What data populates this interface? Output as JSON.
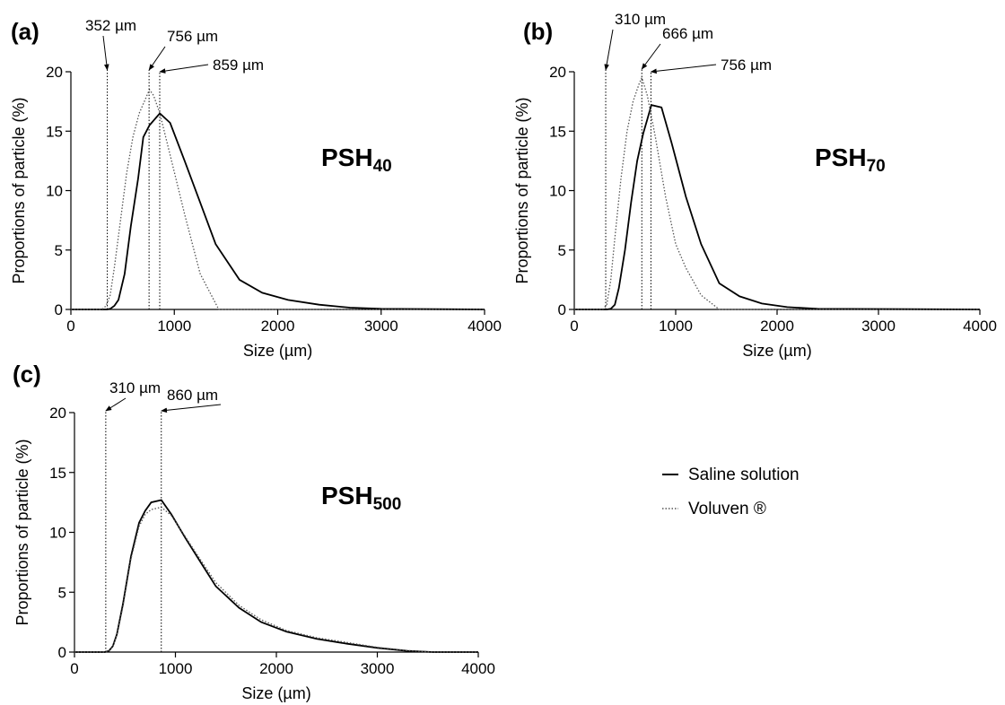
{
  "chart_data": [
    {
      "type": "line",
      "panel_label": "(a)",
      "sample_label": "PSH",
      "sample_subscript": "40",
      "xlabel": "Size (µm)",
      "ylabel": "Proportions of particle (%)",
      "xlim": [
        0,
        4000
      ],
      "ylim": [
        0,
        20
      ],
      "xticks": [
        "0",
        "1000",
        "2000",
        "3000",
        "4000"
      ],
      "yticks": [
        "0",
        "5",
        "10",
        "15",
        "20"
      ],
      "series": [
        {
          "style": "solid",
          "x": [
            0,
            350,
            380,
            420,
            460,
            520,
            580,
            650,
            700,
            760,
            860,
            960,
            1100,
            1250,
            1400,
            1630,
            1850,
            2100,
            2400,
            2700,
            3000,
            4000
          ],
          "y": [
            0,
            0,
            0.05,
            0.3,
            0.8,
            3,
            7,
            11,
            14.5,
            15.5,
            16.5,
            15.7,
            12.5,
            9,
            5.5,
            2.5,
            1.4,
            0.8,
            0.4,
            0.15,
            0.05,
            0
          ]
        },
        {
          "style": "dotted",
          "x": [
            0,
            300,
            340,
            380,
            420,
            480,
            540,
            600,
            660,
            700,
            760,
            800,
            860,
            960,
            1100,
            1250,
            1430,
            4000
          ],
          "y": [
            0,
            0,
            0.3,
            1.2,
            3.5,
            7.5,
            11.5,
            14.5,
            16.5,
            17.3,
            18.5,
            18,
            16.5,
            13,
            8,
            3,
            0,
            0
          ]
        }
      ],
      "annotations": [
        {
          "text": "352 µm",
          "x": 352
        },
        {
          "text": "756 µm",
          "x": 756
        },
        {
          "text": "859 µm",
          "x": 859
        }
      ]
    },
    {
      "type": "line",
      "panel_label": "(b)",
      "sample_label": "PSH",
      "sample_subscript": "70",
      "xlabel": "Size (µm)",
      "ylabel": "Proportions of particle (%)",
      "xlim": [
        0,
        4000
      ],
      "ylim": [
        0,
        20
      ],
      "xticks": [
        "0",
        "1000",
        "2000",
        "3000",
        "4000"
      ],
      "yticks": [
        "0",
        "5",
        "10",
        "15",
        "20"
      ],
      "series": [
        {
          "style": "solid",
          "x": [
            0,
            320,
            360,
            400,
            440,
            500,
            560,
            620,
            680,
            720,
            760,
            860,
            960,
            1100,
            1250,
            1430,
            1630,
            1850,
            2100,
            2400,
            4000
          ],
          "y": [
            0,
            0,
            0.05,
            0.4,
            1.8,
            5,
            9,
            12.5,
            14.8,
            16,
            17.2,
            17,
            14,
            9.5,
            5.5,
            2.2,
            1.1,
            0.5,
            0.2,
            0.05,
            0
          ]
        },
        {
          "style": "dotted",
          "x": [
            0,
            280,
            320,
            360,
            400,
            460,
            520,
            580,
            640,
            666,
            720,
            800,
            900,
            1000,
            1100,
            1250,
            1430,
            4000
          ],
          "y": [
            0,
            0,
            0.4,
            2.5,
            6,
            11,
            15,
            17.5,
            19,
            19.5,
            18,
            14.5,
            9.5,
            5.5,
            3.5,
            1.2,
            0,
            0
          ]
        }
      ],
      "annotations": [
        {
          "text": "310 µm",
          "x": 310
        },
        {
          "text": "666 µm",
          "x": 666
        },
        {
          "text": "756 µm",
          "x": 756
        }
      ]
    },
    {
      "type": "line",
      "panel_label": "(c)",
      "sample_label": "PSH",
      "sample_subscript": "500",
      "xlabel": "Size (µm)",
      "ylabel": "Proportions of particle (%)",
      "xlim": [
        0,
        4000
      ],
      "ylim": [
        0,
        20
      ],
      "xticks": [
        "0",
        "1000",
        "2000",
        "3000",
        "4000"
      ],
      "yticks": [
        "0",
        "5",
        "10",
        "15",
        "20"
      ],
      "series": [
        {
          "style": "solid",
          "x": [
            0,
            300,
            340,
            380,
            420,
            480,
            560,
            640,
            700,
            760,
            860,
            960,
            1100,
            1250,
            1400,
            1630,
            1850,
            2100,
            2400,
            2700,
            3000,
            3300,
            3550,
            4000
          ],
          "y": [
            0,
            0,
            0.1,
            0.5,
            1.5,
            4,
            8,
            10.8,
            11.8,
            12.5,
            12.7,
            11.5,
            9.5,
            7.5,
            5.5,
            3.7,
            2.5,
            1.7,
            1.1,
            0.7,
            0.35,
            0.1,
            0,
            0
          ]
        },
        {
          "style": "dotted",
          "x": [
            0,
            300,
            340,
            380,
            420,
            480,
            560,
            640,
            700,
            760,
            860,
            960,
            1100,
            1250,
            1400,
            1630,
            1850,
            2100,
            2400,
            2700,
            3000,
            3300,
            3550,
            4000
          ],
          "y": [
            0,
            0,
            0.1,
            0.5,
            1.4,
            3.8,
            7.8,
            10.5,
            11.5,
            11.9,
            12.1,
            11.4,
            9.6,
            7.7,
            5.8,
            3.9,
            2.7,
            1.8,
            1.2,
            0.8,
            0.4,
            0.12,
            0,
            0
          ]
        }
      ],
      "annotations": [
        {
          "text": "310 µm",
          "x": 310
        },
        {
          "text": "860 µm",
          "x": 860
        }
      ]
    }
  ],
  "legend": {
    "placement": "right",
    "entries": [
      {
        "label": "Saline solution",
        "style": "solid"
      },
      {
        "label": "Voluven ®",
        "style": "dotted"
      }
    ]
  }
}
